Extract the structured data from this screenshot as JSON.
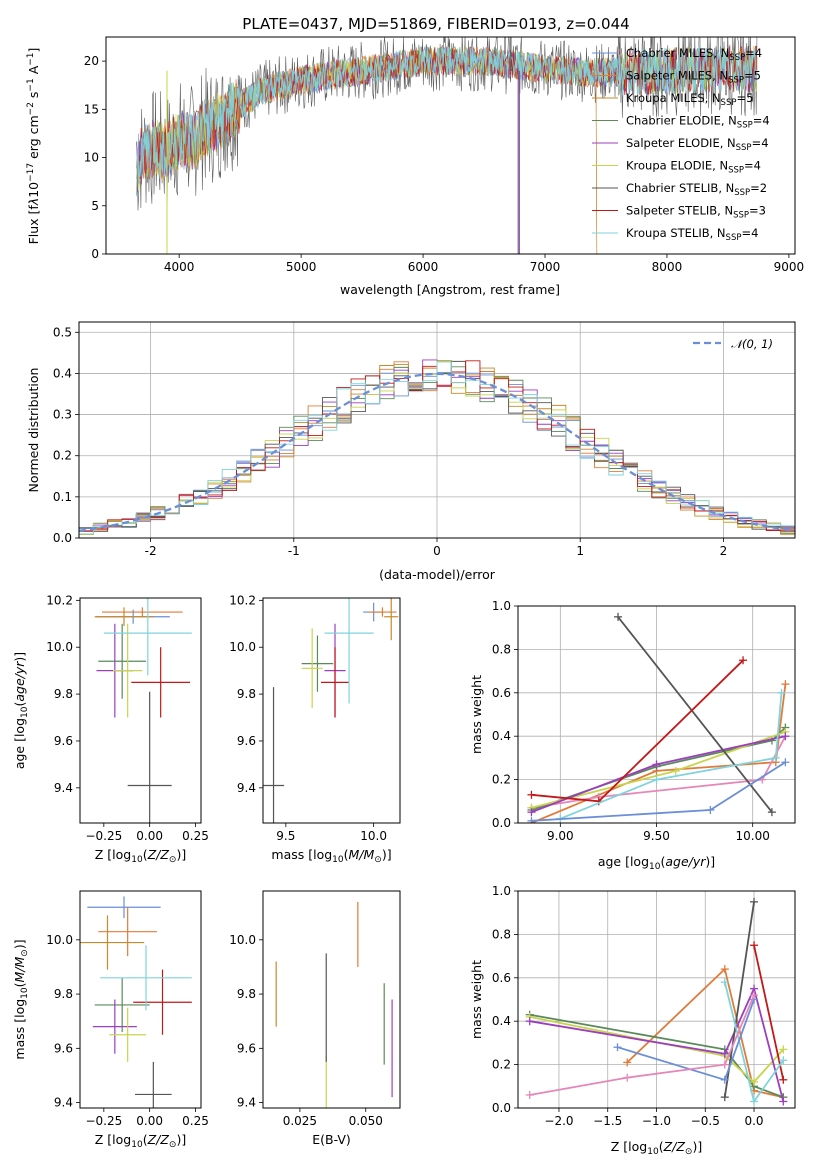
{
  "title": "PLATE=0437, MJD=51869, FIBERID=0193, z=0.044",
  "legend_entries": [
    {
      "label": "Chabrier MILES, N",
      "sub": "SSP",
      "suffix": "=4",
      "color": "#6a8fd8"
    },
    {
      "label": "Salpeter MILES, N",
      "sub": "SSP",
      "suffix": "=5",
      "color": "#e07b39"
    },
    {
      "label": "Kroupa MILES, N",
      "sub": "SSP",
      "suffix": "=5",
      "color": "#c9882a"
    },
    {
      "label": "Chabrier ELODIE, N",
      "sub": "SSP",
      "suffix": "=4",
      "color": "#5a8a5a"
    },
    {
      "label": "Salpeter ELODIE, N",
      "sub": "SSP",
      "suffix": "=4",
      "color": "#9b3fbf"
    },
    {
      "label": "Kroupa ELODIE, N",
      "sub": "SSP",
      "suffix": "=4",
      "color": "#c8d44e"
    },
    {
      "label": "Chabrier STELIB, N",
      "sub": "SSP",
      "suffix": "=2",
      "color": "#555555"
    },
    {
      "label": "Salpeter STELIB, N",
      "sub": "SSP",
      "suffix": "=3",
      "color": "#c41818"
    },
    {
      "label": "Kroupa STELIB, N",
      "sub": "SSP",
      "suffix": "=4",
      "color": "#7fd3dc"
    }
  ],
  "normal_legend": "𝒩(0, 1)",
  "chart_data": [
    {
      "id": "spectrum",
      "type": "line",
      "xlabel": "wavelength [Angstrom, rest frame]",
      "ylabel_main": "Flux [f",
      "ylabel_rest": "10",
      "xlim": [
        3400,
        9050
      ],
      "ylim": [
        0,
        22.5
      ],
      "xticks": [
        4000,
        5000,
        6000,
        7000,
        8000,
        9000
      ],
      "yticks": [
        0,
        5,
        10,
        15,
        20
      ],
      "profile_x": [
        3650,
        3700,
        3800,
        3900,
        4000,
        4100,
        4200,
        4300,
        4400,
        4500,
        4700,
        5000,
        5200,
        5500,
        6000,
        6200,
        6500,
        6800,
        7000,
        7200,
        7400,
        7600,
        8000,
        8400,
        8700
      ],
      "profile_y": [
        9,
        10.5,
        11,
        10.5,
        12,
        11.5,
        13,
        13.5,
        14.5,
        15.5,
        17,
        18,
        18.5,
        19,
        20,
        20,
        20,
        19.5,
        19.2,
        19,
        18.8,
        18.8,
        19,
        19.2,
        19.2
      ]
    },
    {
      "id": "residual_hist",
      "type": "line",
      "xlabel": "(data-model)/error",
      "ylabel": "Normed distribution",
      "xlim": [
        -2.5,
        2.5
      ],
      "ylim": [
        0,
        0.525
      ],
      "xticks": [
        -2,
        -1,
        0,
        1,
        2
      ],
      "yticks": [
        0.0,
        0.1,
        0.2,
        0.3,
        0.4,
        0.5
      ]
    },
    {
      "id": "age_vs_Z",
      "type": "scatter",
      "xlabel": "Z [log",
      "ylabel": "age  [log",
      "xlim": [
        -0.38,
        0.28
      ],
      "ylim": [
        9.25,
        10.21
      ],
      "xticks": [
        -0.25,
        0.0,
        0.25
      ],
      "yticks": [
        9.4,
        9.6,
        9.8,
        10.0,
        10.2
      ],
      "points": [
        {
          "x": -0.09,
          "y": 10.13,
          "xe": 0.2,
          "ye": 0.03
        },
        {
          "x": -0.04,
          "y": 10.15,
          "xe": 0.22,
          "ye": 0.02
        },
        {
          "x": -0.14,
          "y": 10.13,
          "xe": 0.16,
          "ye": 0.04
        },
        {
          "x": -0.15,
          "y": 9.94,
          "xe": 0.13,
          "ye": 0.16
        },
        {
          "x": -0.19,
          "y": 9.9,
          "xe": 0.1,
          "ye": 0.2
        },
        {
          "x": -0.12,
          "y": 9.9,
          "xe": 0.08,
          "ye": 0.2
        },
        {
          "x": 0.0,
          "y": 9.41,
          "xe": 0.12,
          "ye": 0.4
        },
        {
          "x": 0.06,
          "y": 9.85,
          "xe": 0.16,
          "ye": 0.15
        },
        {
          "x": -0.01,
          "y": 10.06,
          "xe": 0.24,
          "ye": 0.18
        }
      ]
    },
    {
      "id": "age_vs_mass",
      "type": "scatter",
      "xlabel": "mass [log",
      "xlim": [
        9.37,
        10.15
      ],
      "ylim": [
        9.25,
        10.21
      ],
      "xticks": [
        9.5,
        10.0
      ],
      "yticks": [
        9.4,
        9.6,
        9.8,
        10.0,
        10.2
      ],
      "points": [
        {
          "x": 10.0,
          "y": 10.15,
          "xe": 0.06,
          "ye": 0.04
        },
        {
          "x": 10.05,
          "y": 10.15,
          "xe": 0.08,
          "ye": 0.02
        },
        {
          "x": 10.1,
          "y": 10.13,
          "xe": 0.04,
          "ye": 0.1
        },
        {
          "x": 9.68,
          "y": 9.93,
          "xe": 0.09,
          "ye": 0.12
        },
        {
          "x": 9.78,
          "y": 9.9,
          "xe": 0.06,
          "ye": 0.2
        },
        {
          "x": 9.65,
          "y": 9.91,
          "xe": 0.06,
          "ye": 0.17
        },
        {
          "x": 9.43,
          "y": 9.41,
          "xe": 0.06,
          "ye": 0.42
        },
        {
          "x": 9.78,
          "y": 9.85,
          "xe": 0.08,
          "ye": 0.15
        },
        {
          "x": 9.86,
          "y": 10.06,
          "xe": 0.14,
          "ye": 0.3
        }
      ]
    },
    {
      "id": "weight_vs_age",
      "type": "line",
      "xlabel": "age  [log",
      "ylabel": "mass weight",
      "xlim": [
        8.78,
        10.22
      ],
      "ylim": [
        0,
        1.0
      ],
      "xticks": [
        9.0,
        9.5,
        10.0
      ],
      "yticks": [
        0.0,
        0.2,
        0.4,
        0.6,
        0.8,
        1.0
      ],
      "series": [
        {
          "x": [
            8.85,
            9.5,
            10.12,
            10.17
          ],
          "y": [
            0.0,
            0.24,
            0.28,
            0.64
          ],
          "color": "#e07b39"
        },
        {
          "x": [
            8.85,
            9.2,
            10.05,
            10.17
          ],
          "y": [
            0.07,
            0.12,
            0.2,
            0.4
          ],
          "color": "#e687b8"
        },
        {
          "x": [
            8.85,
            9.5,
            10.1,
            10.17
          ],
          "y": [
            0.06,
            0.26,
            0.38,
            0.44
          ],
          "color": "#5a8a5a"
        },
        {
          "x": [
            8.85,
            9.6,
            10.17
          ],
          "y": [
            0.07,
            0.24,
            0.42
          ],
          "color": "#c8d44e"
        },
        {
          "x": [
            8.85,
            9.5,
            10.17
          ],
          "y": [
            0.05,
            0.27,
            0.4
          ],
          "color": "#9b3fbf"
        },
        {
          "x": [
            9.3,
            10.1
          ],
          "y": [
            0.95,
            0.05
          ],
          "color": "#555555"
        },
        {
          "x": [
            8.85,
            9.2,
            9.95
          ],
          "y": [
            0.13,
            0.1,
            0.75
          ],
          "color": "#c41818"
        },
        {
          "x": [
            9.0,
            9.5,
            10.12,
            10.15
          ],
          "y": [
            0.02,
            0.2,
            0.3,
            0.6
          ],
          "color": "#7fd3dc"
        },
        {
          "x": [
            8.85,
            9.78,
            10.17
          ],
          "y": [
            0.01,
            0.06,
            0.28
          ],
          "color": "#6a8fd8"
        }
      ]
    },
    {
      "id": "mass_vs_Z",
      "type": "scatter",
      "xlabel": "Z [log",
      "ylabel": "mass [log",
      "xlim": [
        -0.38,
        0.28
      ],
      "ylim": [
        9.38,
        10.18
      ],
      "xticks": [
        -0.25,
        0.0,
        0.25
      ],
      "yticks": [
        9.4,
        9.6,
        9.8,
        10.0
      ],
      "points": [
        {
          "x": -0.14,
          "y": 10.12,
          "xe": 0.2,
          "ye": 0.04
        },
        {
          "x": -0.12,
          "y": 10.03,
          "xe": 0.16,
          "ye": 0.09
        },
        {
          "x": -0.23,
          "y": 9.99,
          "xe": 0.2,
          "ye": 0.1
        },
        {
          "x": -0.15,
          "y": 9.76,
          "xe": 0.15,
          "ye": 0.1
        },
        {
          "x": -0.19,
          "y": 9.68,
          "xe": 0.12,
          "ye": 0.1
        },
        {
          "x": -0.12,
          "y": 9.65,
          "xe": 0.1,
          "ye": 0.1
        },
        {
          "x": 0.02,
          "y": 9.43,
          "xe": 0.1,
          "ye": 0.12
        },
        {
          "x": 0.07,
          "y": 9.77,
          "xe": 0.16,
          "ye": 0.12
        },
        {
          "x": -0.02,
          "y": 9.86,
          "xe": 0.25,
          "ye": 0.12
        }
      ]
    },
    {
      "id": "mass_vs_EBV",
      "type": "scatter",
      "xlabel": "E(B-V)",
      "xlim": [
        0.011,
        0.063
      ],
      "ylim": [
        9.38,
        10.18
      ],
      "xticks": [
        0.025,
        0.05
      ],
      "yticks": [
        9.4,
        9.6,
        9.8,
        10.0
      ],
      "points": [
        {
          "x": 0.047,
          "y": 10.02,
          "ye": 0.12
        },
        {
          "x": 0.016,
          "y": 9.8,
          "ye": 0.12
        },
        {
          "x": 0.057,
          "y": 9.69,
          "ye": 0.15
        },
        {
          "x": 0.06,
          "y": 9.6,
          "ye": 0.18
        },
        {
          "x": 0.035,
          "y": 9.45,
          "ye": 0.12
        },
        {
          "x": 0.035,
          "y": 9.75,
          "ye": 0.2
        }
      ]
    },
    {
      "id": "weight_vs_Z",
      "type": "line",
      "xlabel": "Z [log",
      "ylabel": "mass weight",
      "xlim": [
        -2.42,
        0.42
      ],
      "ylim": [
        0,
        1.0
      ],
      "xticks": [
        -2.0,
        -1.5,
        -1.0,
        -0.5,
        0.0
      ],
      "yticks": [
        0.0,
        0.2,
        0.4,
        0.6,
        0.8,
        1.0
      ],
      "series": [
        {
          "x": [
            -1.3,
            -0.3,
            0.0,
            0.3
          ],
          "y": [
            0.21,
            0.64,
            0.08,
            0.05
          ],
          "color": "#e07b39"
        },
        {
          "x": [
            -2.3,
            -0.3,
            0.0,
            0.3
          ],
          "y": [
            0.43,
            0.27,
            0.1,
            0.05
          ],
          "color": "#5a8a5a"
        },
        {
          "x": [
            -2.3,
            -0.3,
            0.0,
            0.3
          ],
          "y": [
            0.42,
            0.24,
            0.12,
            0.27
          ],
          "color": "#c8d44e"
        },
        {
          "x": [
            -2.3,
            -0.3,
            0.0,
            0.3
          ],
          "y": [
            0.4,
            0.25,
            0.55,
            0.03
          ],
          "color": "#9b3fbf"
        },
        {
          "x": [
            -0.3,
            0.0
          ],
          "y": [
            0.05,
            0.95
          ],
          "color": "#555555"
        },
        {
          "x": [
            0.0,
            0.3
          ],
          "y": [
            0.75,
            0.13
          ],
          "color": "#c41818"
        },
        {
          "x": [
            -0.3,
            0.0,
            0.3
          ],
          "y": [
            0.58,
            0.03,
            0.22
          ],
          "color": "#7fd3dc"
        },
        {
          "x": [
            -1.4,
            -0.3,
            0.0
          ],
          "y": [
            0.28,
            0.13,
            0.5
          ],
          "color": "#6a8fd8"
        },
        {
          "x": [
            -2.3,
            -1.3,
            -0.3,
            0.0
          ],
          "y": [
            0.06,
            0.14,
            0.2,
            0.52
          ],
          "color": "#e687b8"
        }
      ]
    }
  ]
}
